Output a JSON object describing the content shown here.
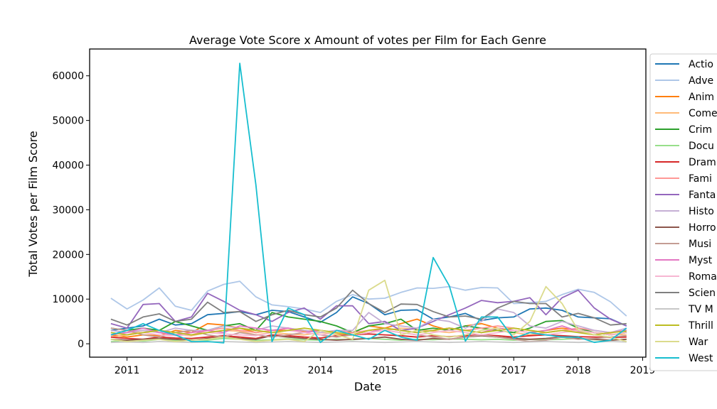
{
  "chart_data": {
    "type": "line",
    "title": "Average Vote Score x Amount of votes per Film for Each Genre",
    "xlabel": "Date",
    "ylabel": "Total Votes per Film Score",
    "xlim": [
      2010.42,
      2019.05
    ],
    "ylim": [
      -3000,
      66000
    ],
    "x_ticks": [
      2011,
      2012,
      2013,
      2014,
      2015,
      2016,
      2017,
      2018,
      2019
    ],
    "x_tick_labels": [
      "2011",
      "2012",
      "2013",
      "2014",
      "2015",
      "2016",
      "2017",
      "2018",
      "2019"
    ],
    "y_ticks": [
      0,
      10000,
      20000,
      30000,
      40000,
      50000,
      60000
    ],
    "y_tick_labels": [
      "0",
      "10000",
      "20000",
      "30000",
      "40000",
      "50000",
      "60000"
    ],
    "grid": false,
    "legend_position": "outside-right",
    "x": [
      2010.75,
      2011.0,
      2011.25,
      2011.5,
      2011.75,
      2012.0,
      2012.25,
      2012.5,
      2012.75,
      2013.0,
      2013.25,
      2013.5,
      2013.75,
      2014.0,
      2014.25,
      2014.5,
      2014.75,
      2015.0,
      2015.25,
      2015.5,
      2015.75,
      2016.0,
      2016.25,
      2016.5,
      2016.75,
      2017.0,
      2017.25,
      2017.5,
      2017.75,
      2018.0,
      2018.25,
      2018.5,
      2018.75
    ],
    "series": [
      {
        "name": "Action",
        "label": "Actio",
        "color": "#1f77b4",
        "values": [
          3000,
          3500,
          4000,
          5500,
          4200,
          4500,
          6500,
          6800,
          7200,
          6500,
          7500,
          7200,
          6000,
          4800,
          7000,
          10500,
          9000,
          6500,
          7500,
          7600,
          5500,
          6000,
          6800,
          5200,
          5800,
          6000,
          7800,
          8000,
          7500,
          6000,
          5800,
          5600,
          4000
        ]
      },
      {
        "name": "Adventure",
        "label": "Adve",
        "color": "#aec7e8",
        "values": [
          10200,
          7800,
          9800,
          12500,
          8400,
          7500,
          11800,
          13300,
          14000,
          10500,
          8700,
          8300,
          7800,
          7000,
          9500,
          11000,
          10000,
          10200,
          11500,
          12500,
          12400,
          12800,
          12000,
          12600,
          12500,
          9000,
          9200,
          9500,
          11000,
          12200,
          11500,
          9400,
          6200
        ]
      },
      {
        "name": "Animation",
        "label": "Anim",
        "color": "#ff7f0e",
        "values": [
          2000,
          1500,
          2000,
          1800,
          3000,
          2500,
          4500,
          4200,
          3500,
          2500,
          3000,
          3000,
          2800,
          3000,
          2000,
          2500,
          4000,
          3500,
          4500,
          5500,
          4000,
          3000,
          4000,
          4500,
          3500,
          3000,
          2500,
          3000,
          3500,
          3000,
          2500,
          2000,
          2500
        ]
      },
      {
        "name": "Comedy",
        "label": "Come",
        "color": "#ffbb78",
        "values": [
          1500,
          2000,
          3000,
          2500,
          2000,
          1800,
          2500,
          3000,
          2800,
          2000,
          2500,
          2200,
          2000,
          2500,
          2300,
          2000,
          2500,
          3000,
          3500,
          3200,
          2800,
          2500,
          3000,
          3500,
          3000,
          2500,
          2000,
          2500,
          3000,
          2800,
          2500,
          2200,
          2000
        ]
      },
      {
        "name": "Crime",
        "label": "Crim",
        "color": "#2ca02c",
        "values": [
          3500,
          3000,
          3500,
          3000,
          5000,
          4000,
          3000,
          4000,
          4500,
          3000,
          7000,
          6000,
          5500,
          5000,
          4000,
          2500,
          4000,
          4500,
          5500,
          3000,
          3500,
          3000,
          4000,
          3500,
          3000,
          2500,
          3500,
          5000,
          5200,
          3500,
          2500,
          2000,
          2500
        ]
      },
      {
        "name": "Documentary",
        "label": "Docu",
        "color": "#98df8a",
        "values": [
          500,
          800,
          600,
          1000,
          700,
          900,
          800,
          1200,
          1000,
          800,
          900,
          1100,
          900,
          800,
          1000,
          900,
          1200,
          1000,
          800,
          1000,
          900,
          1100,
          1000,
          900,
          1000,
          800,
          1000,
          900,
          1000,
          1200,
          900,
          800,
          1000
        ]
      },
      {
        "name": "Drama",
        "label": "Dram",
        "color": "#d62728",
        "values": [
          1500,
          1200,
          1000,
          1500,
          1300,
          1200,
          1500,
          1800,
          1500,
          1200,
          2000,
          1800,
          1500,
          1300,
          1800,
          2000,
          2200,
          2000,
          1800,
          1500,
          1800,
          1600,
          1800,
          2000,
          1800,
          1500,
          1800,
          2000,
          1800,
          1600,
          1500,
          1400,
          1500
        ]
      },
      {
        "name": "Family",
        "label": "Fami",
        "color": "#ff9896",
        "values": [
          2500,
          2000,
          2500,
          3000,
          2500,
          2000,
          3000,
          3500,
          3000,
          2500,
          3000,
          3500,
          3000,
          2500,
          3000,
          2500,
          3000,
          3500,
          3000,
          2500,
          3000,
          3500,
          3000,
          3500,
          4000,
          3500,
          3000,
          2500,
          3000,
          3500,
          3000,
          2500,
          3000
        ]
      },
      {
        "name": "Fantasy",
        "label": "Fanta",
        "color": "#9467bd",
        "values": [
          4500,
          3500,
          8800,
          9000,
          5000,
          6000,
          11300,
          9500,
          7500,
          6500,
          5000,
          7000,
          8000,
          5500,
          8500,
          8500,
          4500,
          5000,
          3000,
          3500,
          5000,
          6500,
          8000,
          9700,
          9200,
          9500,
          10300,
          6500,
          10300,
          12000,
          8000,
          5500,
          4000
        ]
      },
      {
        "name": "History",
        "label": "Histo",
        "color": "#c5b0d5",
        "values": [
          3000,
          2500,
          3000,
          2500,
          3500,
          3000,
          3000,
          4000,
          3500,
          3000,
          4000,
          3500,
          3000,
          2500,
          3000,
          3000,
          7000,
          4500,
          4000,
          3500,
          5500,
          5000,
          3500,
          5000,
          7800,
          7000,
          4000,
          3500,
          5000,
          4000,
          3000,
          2500,
          3500
        ]
      },
      {
        "name": "Horror",
        "label": "Horro",
        "color": "#8c564b",
        "values": [
          1000,
          800,
          1000,
          1200,
          1000,
          800,
          1200,
          1500,
          1200,
          1000,
          1800,
          1500,
          1200,
          1000,
          800,
          1000,
          1200,
          1500,
          1000,
          800,
          1200,
          1000,
          1500,
          1800,
          1500,
          1200,
          1000,
          1200,
          1500,
          1200,
          1000,
          800,
          1000
        ]
      },
      {
        "name": "Music",
        "label": "Musi",
        "color": "#c49c94",
        "values": [
          3500,
          3000,
          2000,
          1500,
          2500,
          3000,
          2000,
          1500,
          2500,
          2000,
          1500,
          2000,
          2500,
          2000,
          1500,
          2000,
          2500,
          3000,
          2500,
          2000,
          1500,
          1000,
          1500,
          2000,
          1500,
          1000,
          500,
          800,
          1500,
          1000,
          1200,
          1500,
          1800
        ]
      },
      {
        "name": "Mystery",
        "label": "Myst",
        "color": "#e377c2",
        "values": [
          2000,
          2500,
          3500,
          2500,
          2000,
          2500,
          3000,
          2500,
          4000,
          3500,
          3000,
          3500,
          2500,
          3000,
          2500,
          2000,
          2500,
          3500,
          3000,
          2500,
          3000,
          3500,
          3000,
          2500,
          3500,
          3000,
          2500,
          3000,
          4000,
          2800,
          2000,
          2500,
          3000
        ]
      },
      {
        "name": "Romance",
        "label": "Roma",
        "color": "#f7b6d2",
        "values": [
          2500,
          2000,
          2500,
          2000,
          1800,
          2000,
          2500,
          2200,
          2000,
          1800,
          2500,
          3000,
          2500,
          2000,
          2500,
          2000,
          2500,
          3000,
          2500,
          2000,
          2500,
          3000,
          2500,
          2000,
          2500,
          3000,
          2500,
          2000,
          2500,
          3000,
          2500,
          2000,
          2500
        ]
      },
      {
        "name": "Science Fiction",
        "label": "Scien",
        "color": "#7f7f7f",
        "values": [
          5500,
          4200,
          6000,
          6700,
          5000,
          5500,
          9300,
          7000,
          7200,
          5000,
          6500,
          7500,
          6500,
          6000,
          8000,
          12000,
          9000,
          7000,
          8900,
          8800,
          7200,
          6000,
          6200,
          5500,
          8000,
          9500,
          9000,
          9000,
          6000,
          6800,
          5800,
          4200,
          4500
        ]
      },
      {
        "name": "TV Movie",
        "label": "TV M",
        "color": "#c7c7c7",
        "values": [
          300,
          400,
          300,
          500,
          400,
          300,
          400,
          500,
          400,
          300,
          400,
          500,
          400,
          300,
          400,
          500,
          400,
          300,
          400,
          500,
          400,
          300,
          400,
          500,
          400,
          300,
          400,
          500,
          400,
          300,
          400,
          500,
          400
        ]
      },
      {
        "name": "Thriller",
        "label": "Thrill",
        "color": "#bcbd22",
        "values": [
          2500,
          2000,
          2500,
          3000,
          2500,
          2000,
          2500,
          3000,
          3500,
          3000,
          2500,
          3000,
          3500,
          3000,
          2500,
          2000,
          3000,
          3500,
          3000,
          2500,
          3000,
          3500,
          3000,
          2500,
          3000,
          3500,
          3000,
          2500,
          3000,
          2500,
          2000,
          2500,
          2800
        ]
      },
      {
        "name": "War",
        "label": "War",
        "color": "#dbdb8d",
        "values": [
          1000,
          500,
          800,
          1000,
          500,
          800,
          1000,
          1500,
          1000,
          500,
          800,
          1000,
          500,
          3000,
          2000,
          1000,
          12000,
          14200,
          2000,
          3000,
          2000,
          1500,
          2000,
          3000,
          3500,
          2000,
          5000,
          12800,
          9000,
          3000,
          2000,
          1500,
          500
        ]
      },
      {
        "name": "Western",
        "label": "West",
        "color": "#17becf",
        "values": [
          2000,
          3000,
          4500,
          3000,
          2000,
          500,
          500,
          200,
          62800,
          35500,
          500,
          8000,
          6500,
          300,
          3000,
          2000,
          1000,
          3000,
          1500,
          800,
          19300,
          13000,
          600,
          6000,
          6000,
          1200,
          2500,
          2000,
          1500,
          1500,
          300,
          800,
          3500
        ]
      }
    ]
  }
}
